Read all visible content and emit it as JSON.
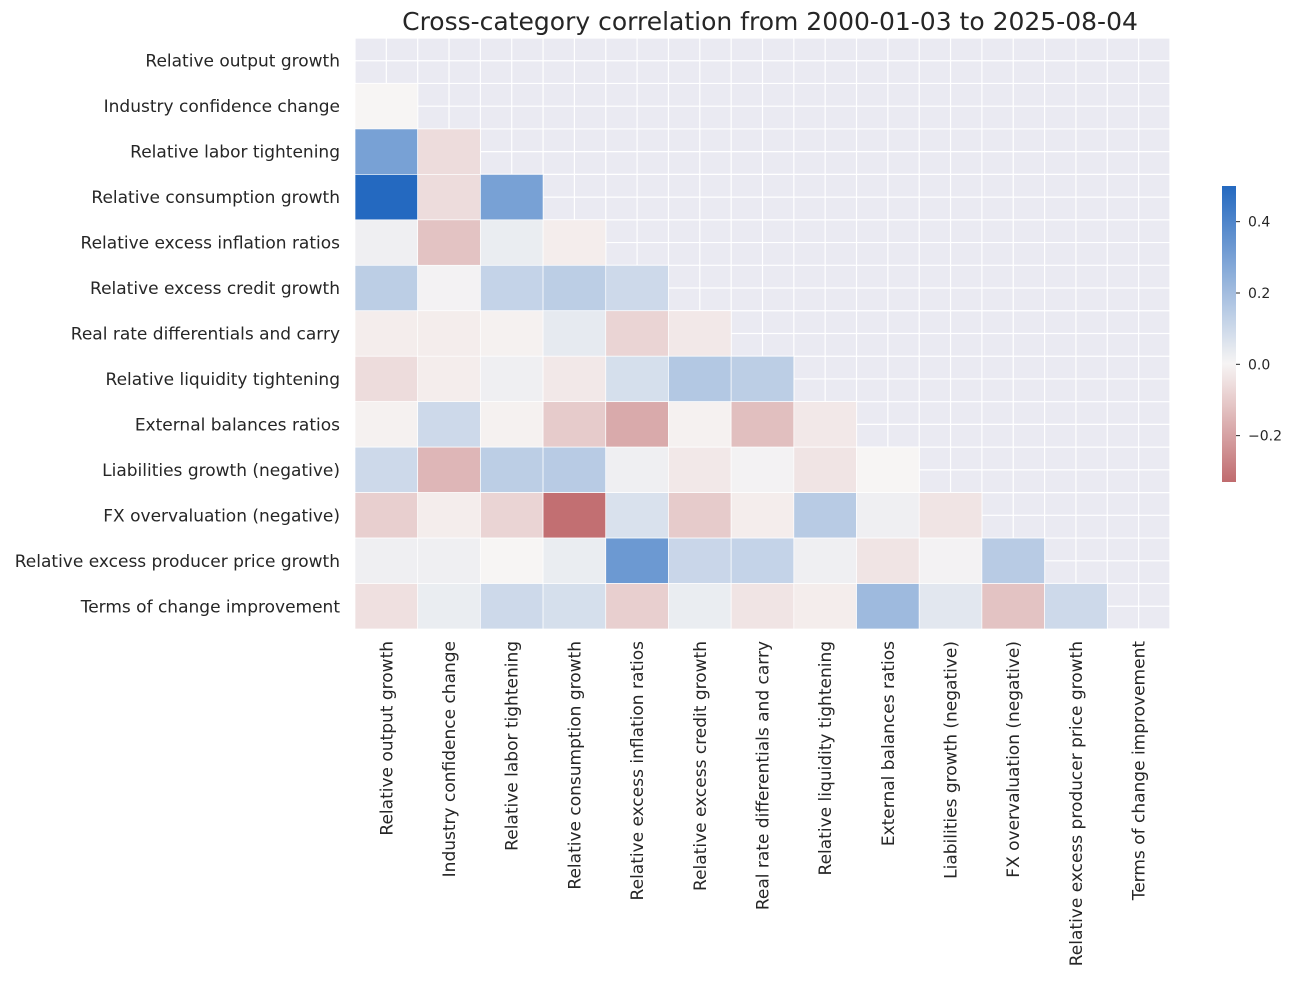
{
  "chart_data": {
    "type": "heatmap",
    "title": "Cross-category correlation from 2000-01-03 to 2025-08-04",
    "labels": [
      "Relative output growth",
      "Industry confidence change",
      "Relative labor tightening",
      "Relative consumption growth",
      "Relative excess inflation ratios",
      "Relative excess credit growth",
      "Real rate differentials and carry",
      "Relative liquidity tightening",
      "External balances ratios",
      "Liabilities growth (negative)",
      "FX overvaluation (negative)",
      "Relative excess producer price growth",
      "Terms of change improvement"
    ],
    "mask": "upper-triangle-including-diagonal",
    "matrix": [
      [],
      [
        0.0
      ],
      [
        0.3,
        -0.06
      ],
      [
        0.5,
        -0.06,
        0.3
      ],
      [
        0.02,
        -0.12,
        0.03,
        -0.02
      ],
      [
        0.14,
        0.01,
        0.12,
        0.14,
        0.1
      ],
      [
        -0.02,
        -0.02,
        -0.01,
        0.04,
        -0.08,
        -0.03
      ],
      [
        -0.06,
        -0.02,
        0.02,
        -0.03,
        0.08,
        0.16,
        0.14
      ],
      [
        -0.01,
        0.1,
        -0.01,
        -0.1,
        -0.18,
        -0.01,
        -0.13,
        -0.03
      ],
      [
        0.1,
        -0.15,
        0.14,
        0.15,
        0.02,
        -0.03,
        0.01,
        -0.04,
        0.0
      ],
      [
        -0.09,
        -0.02,
        -0.08,
        -0.32,
        0.07,
        -0.1,
        -0.02,
        0.15,
        0.02,
        -0.04
      ],
      [
        0.02,
        0.02,
        0.0,
        0.03,
        0.33,
        0.11,
        0.12,
        0.02,
        -0.04,
        0.01,
        0.15
      ],
      [
        -0.05,
        0.03,
        0.1,
        0.08,
        -0.09,
        0.03,
        -0.04,
        -0.02,
        0.21,
        0.05,
        -0.12,
        0.1
      ]
    ],
    "colorbar": {
      "vmin": -0.33,
      "vmax": 0.5,
      "ticks": [
        -0.2,
        0.0,
        0.2,
        0.4
      ],
      "tick_labels": [
        "−0.2",
        "0.0",
        "0.2",
        "0.4"
      ]
    },
    "colors": {
      "negative_end": "#c06b6e",
      "center": "#f7f5f4",
      "positive_end": "#2469c0",
      "masked_background": "#eaeaf2",
      "grid": "#ffffff"
    }
  }
}
